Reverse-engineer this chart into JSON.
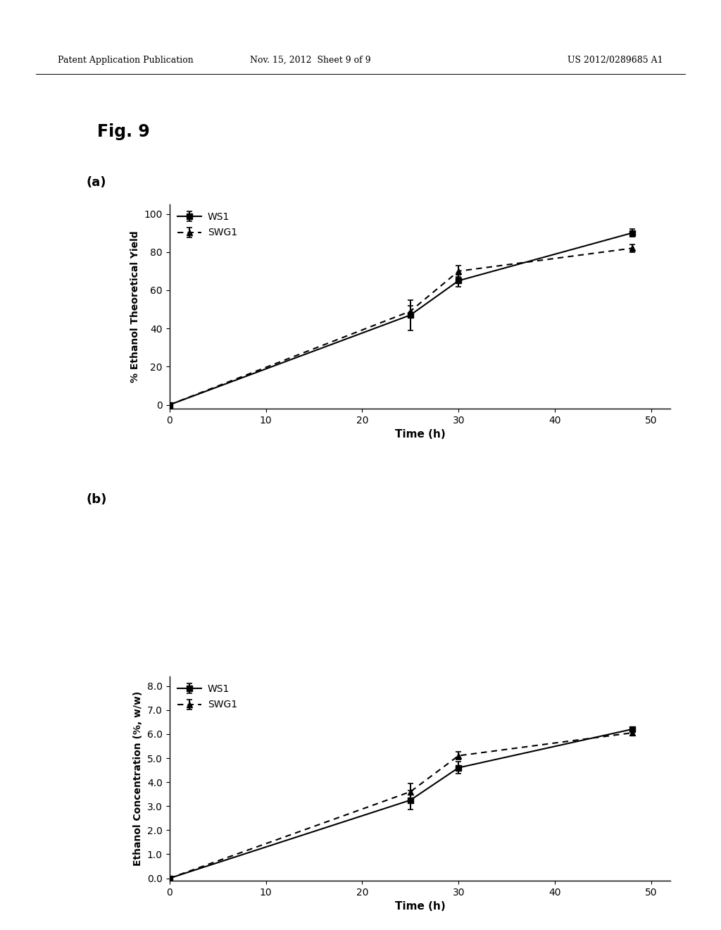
{
  "fig_label": "Fig. 9",
  "panel_a": {
    "label": "(a)",
    "xlabel": "Time (h)",
    "ylabel": "% Ethanol Theoretical Yield",
    "xlim": [
      0,
      52
    ],
    "ylim": [
      -2,
      105
    ],
    "xticks": [
      0,
      10,
      20,
      30,
      40,
      50
    ],
    "yticks": [
      0,
      20,
      40,
      60,
      80,
      100
    ],
    "ws1": {
      "x": [
        0,
        25,
        30,
        48
      ],
      "y": [
        0,
        47,
        65,
        90
      ],
      "yerr": [
        0,
        8,
        3,
        2
      ],
      "label": "WS1",
      "marker": "s",
      "color": "black"
    },
    "swg1": {
      "x": [
        0,
        25,
        30,
        48
      ],
      "y": [
        0,
        49,
        70,
        82
      ],
      "yerr": [
        0,
        3,
        3,
        2
      ],
      "label": "SWG1",
      "marker": "^",
      "color": "black"
    }
  },
  "panel_b": {
    "label": "(b)",
    "xlabel": "Time (h)",
    "ylabel": "Ethanol Concentration (%, w/w)",
    "xlim": [
      0,
      52
    ],
    "ylim": [
      -0.1,
      8.4
    ],
    "xticks": [
      0,
      10,
      20,
      30,
      40,
      50
    ],
    "yticks": [
      0.0,
      1.0,
      2.0,
      3.0,
      4.0,
      5.0,
      6.0,
      7.0,
      8.0
    ],
    "ws1": {
      "x": [
        0,
        25,
        30,
        48
      ],
      "y": [
        0,
        3.25,
        4.6,
        6.2
      ],
      "yerr": [
        0,
        0.4,
        0.25,
        0.1
      ],
      "label": "WS1",
      "marker": "s",
      "color": "black"
    },
    "swg1": {
      "x": [
        0,
        25,
        30,
        48
      ],
      "y": [
        0,
        3.6,
        5.1,
        6.05
      ],
      "yerr": [
        0,
        0.35,
        0.15,
        0.1
      ],
      "label": "SWG1",
      "marker": "^",
      "color": "black"
    }
  },
  "background_color": "#ffffff",
  "header_left": "Patent Application Publication",
  "header_mid": "Nov. 15, 2012  Sheet 9 of 9",
  "header_right": "US 2012/0289685 A1"
}
